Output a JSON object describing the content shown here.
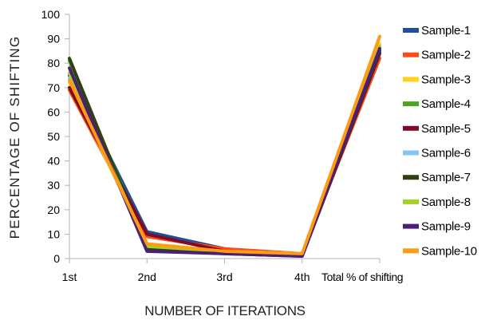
{
  "chart_data": {
    "type": "line",
    "xlabel": "NUMBER OF ITERATIONS",
    "ylabel": "PERCENTAGE OF SHIFTING",
    "categories": [
      "1st",
      "2nd",
      "3rd",
      "4th",
      "Total % of shifting"
    ],
    "ylim": [
      0,
      100
    ],
    "yticks": [
      0,
      10,
      20,
      30,
      40,
      50,
      60,
      70,
      80,
      90,
      100
    ],
    "grid": false,
    "legend_position": "right",
    "series": [
      {
        "name": "Sample-1",
        "color": "#1f4e9a",
        "values": [
          75,
          11,
          4,
          1,
          84
        ]
      },
      {
        "name": "Sample-2",
        "color": "#ff4a17",
        "values": [
          69,
          9,
          4,
          2,
          82
        ]
      },
      {
        "name": "Sample-3",
        "color": "#ffd21f",
        "values": [
          72,
          6,
          3,
          2,
          88
        ]
      },
      {
        "name": "Sample-4",
        "color": "#4aa61e",
        "values": [
          81,
          5,
          3,
          1,
          85
        ]
      },
      {
        "name": "Sample-5",
        "color": "#7e0a23",
        "values": [
          70,
          10,
          3,
          1,
          84
        ]
      },
      {
        "name": "Sample-6",
        "color": "#80c8f2",
        "values": [
          74,
          5,
          3,
          2,
          86
        ]
      },
      {
        "name": "Sample-7",
        "color": "#2e4110",
        "values": [
          82,
          4,
          2,
          1,
          85
        ]
      },
      {
        "name": "Sample-8",
        "color": "#a8d02a",
        "values": [
          76,
          5,
          3,
          2,
          87
        ]
      },
      {
        "name": "Sample-9",
        "color": "#4b1f78",
        "values": [
          78,
          3,
          2,
          1,
          86
        ]
      },
      {
        "name": "Sample-10",
        "color": "#ff9a12",
        "values": [
          73,
          6,
          3,
          2,
          91
        ]
      }
    ]
  }
}
